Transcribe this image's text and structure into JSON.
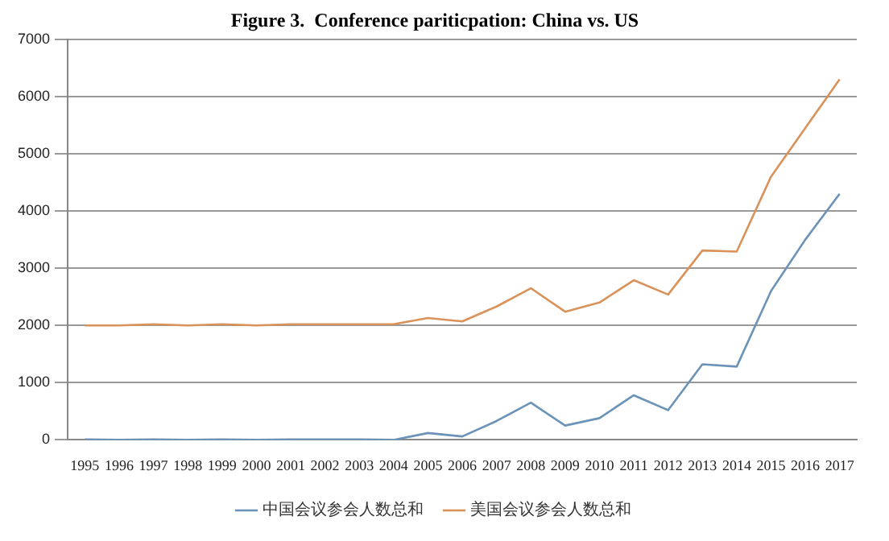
{
  "chart_data": {
    "type": "line",
    "title": "Figure 3.  Conference pariticpation: China vs. US",
    "categories": [
      "1995",
      "1996",
      "1997",
      "1998",
      "1999",
      "2000",
      "2001",
      "2002",
      "2003",
      "2004",
      "2005",
      "2006",
      "2007",
      "2008",
      "2009",
      "2010",
      "2011",
      "2012",
      "2013",
      "2014",
      "2015",
      "2016",
      "2017"
    ],
    "series": [
      {
        "name": "中国会议参会人数总和",
        "color": "#6b93b8",
        "values": [
          10,
          0,
          10,
          0,
          10,
          0,
          10,
          10,
          10,
          0,
          120,
          60,
          330,
          650,
          250,
          380,
          780,
          520,
          1320,
          1280,
          2600,
          3500,
          4300
        ]
      },
      {
        "name": "美国会议参会人数总和",
        "color": "#d9925a",
        "values": [
          2000,
          2000,
          2020,
          2000,
          2020,
          2000,
          2020,
          2020,
          2020,
          2020,
          2130,
          2070,
          2330,
          2650,
          2240,
          2400,
          2790,
          2540,
          3310,
          3290,
          4600,
          5450,
          6300
        ]
      }
    ],
    "ylim": [
      0,
      7000
    ],
    "yticks": [
      0,
      1000,
      2000,
      3000,
      4000,
      5000,
      6000,
      7000
    ],
    "grid": "y",
    "legend": "bottom",
    "marker": "none",
    "line_style": "solid"
  }
}
